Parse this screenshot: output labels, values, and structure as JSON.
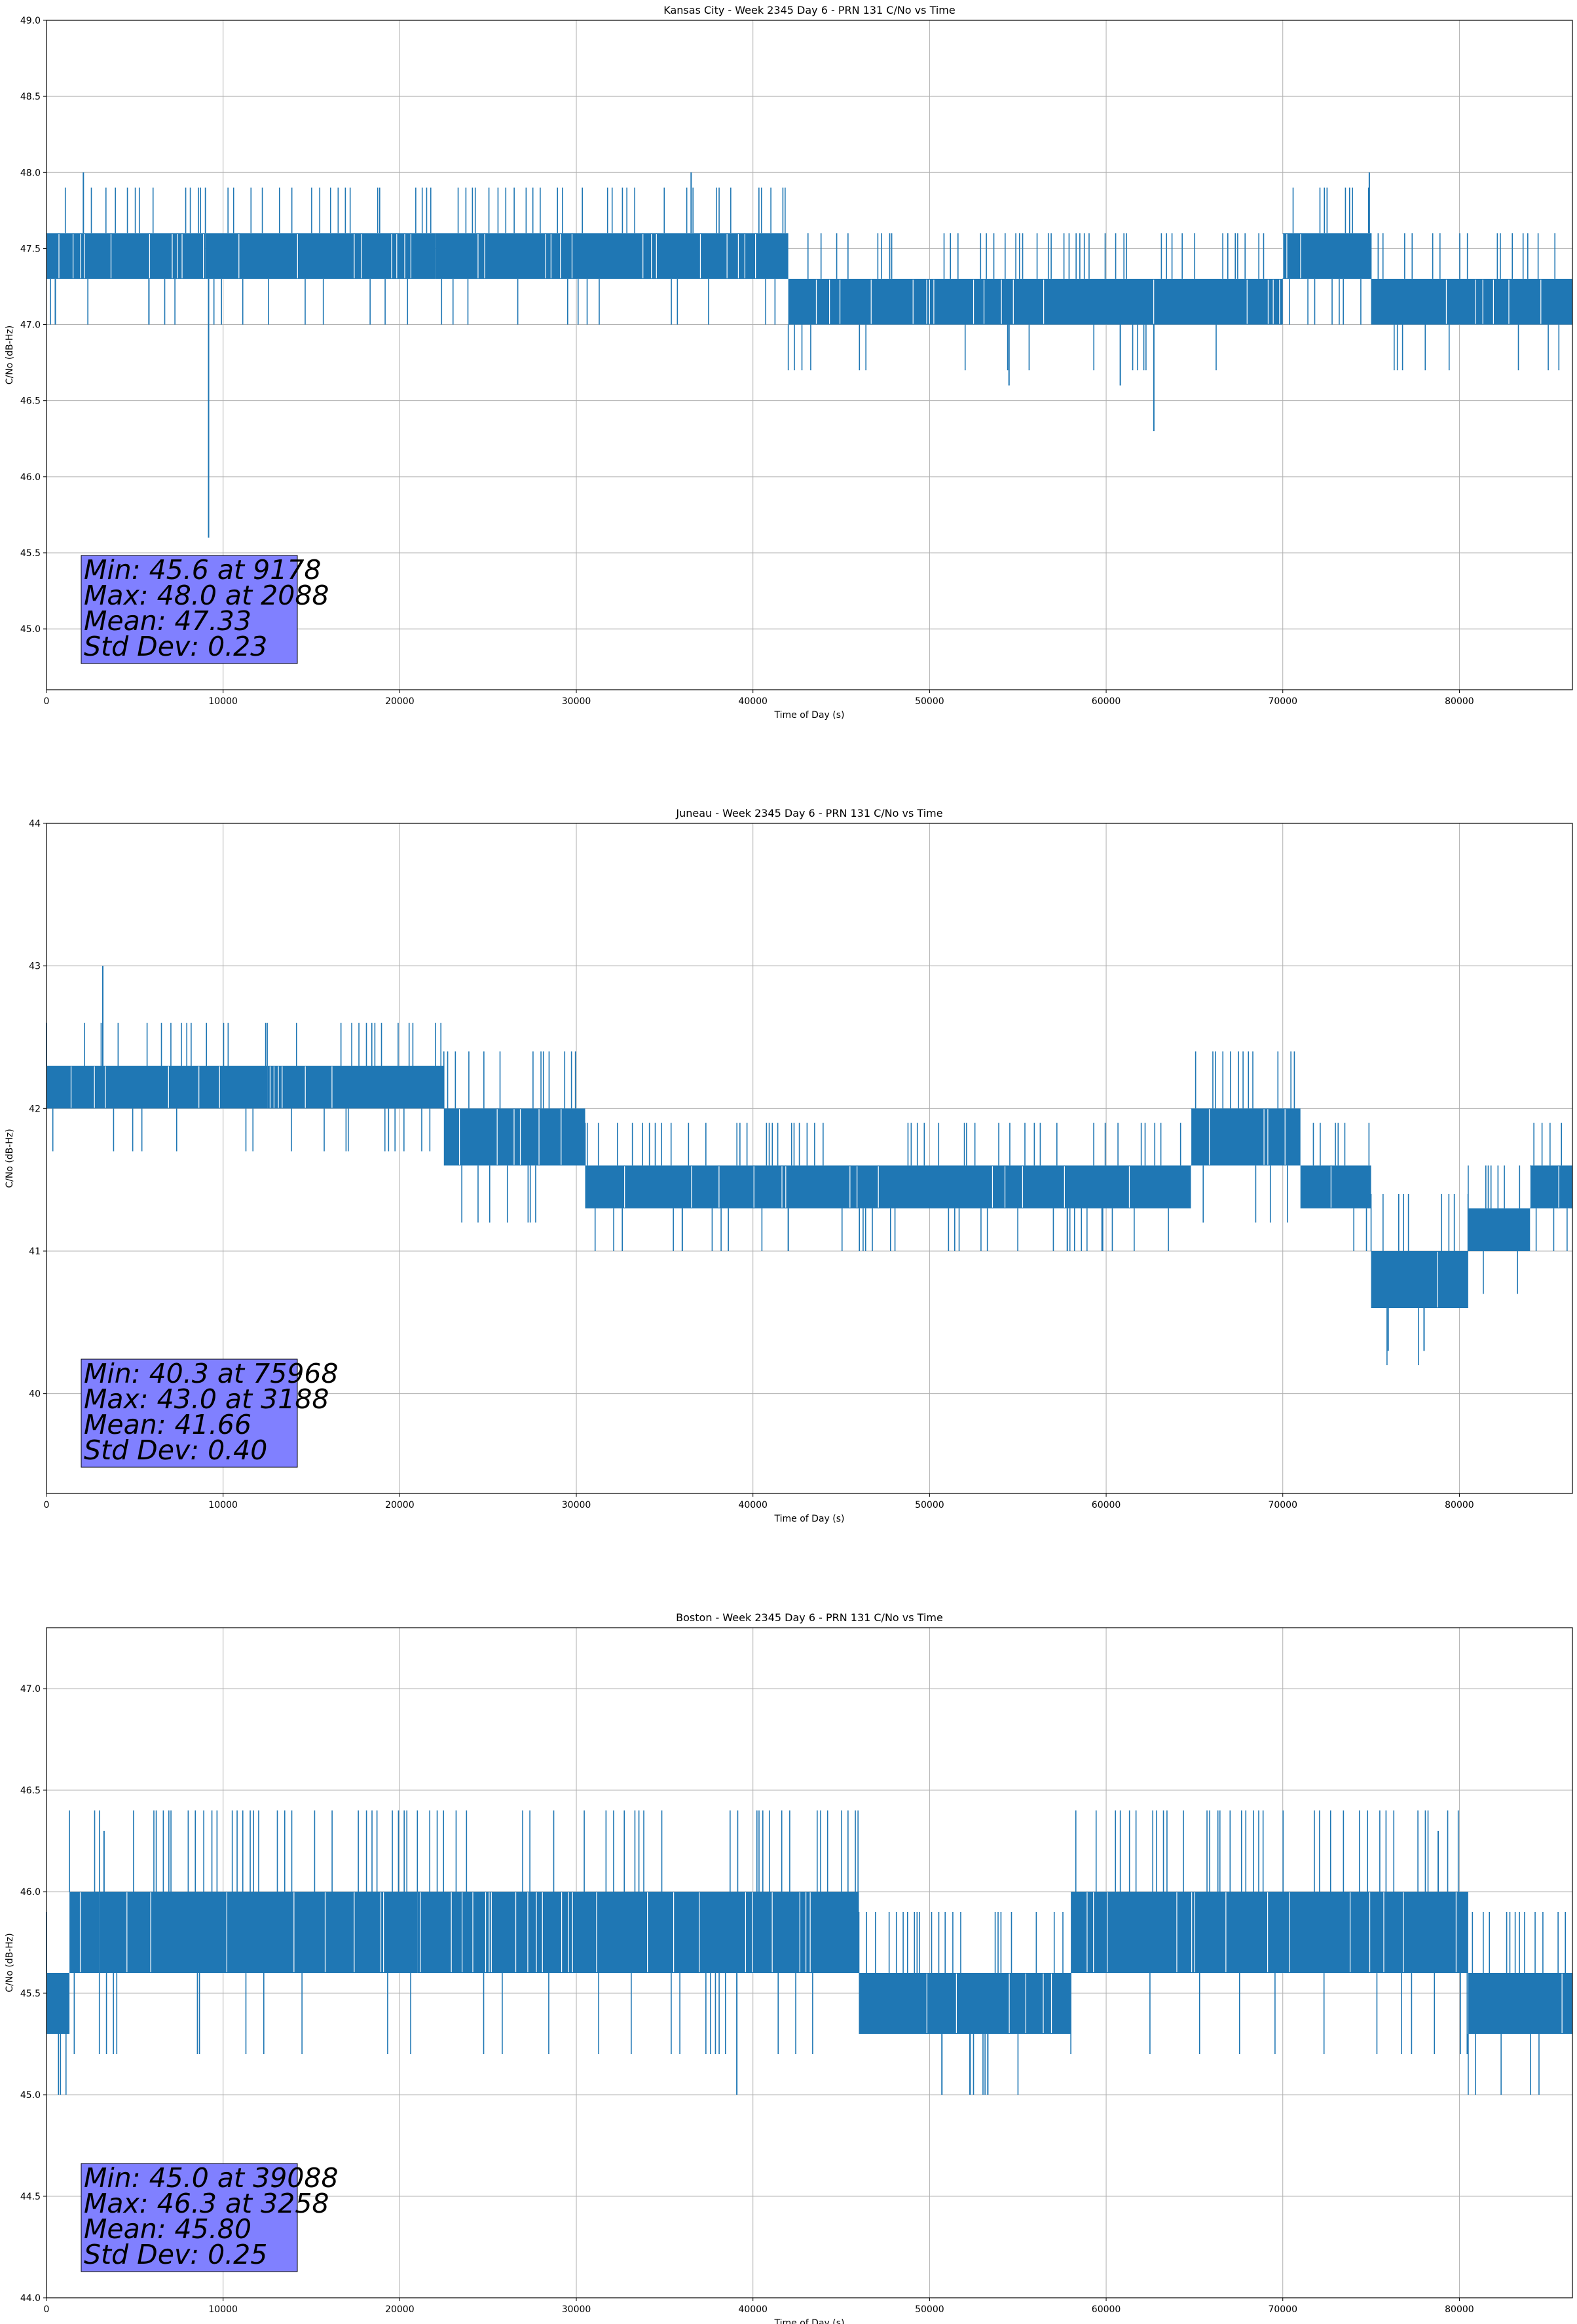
{
  "chart_data": [
    {
      "type": "line",
      "title": "Kansas City - Week 2345 Day 6 - PRN 131 C/No vs Time",
      "xlabel": "Time of Day (s)",
      "ylabel": "C/No (dB-Hz)",
      "xlim": [
        0,
        86400
      ],
      "ylim": [
        44.6,
        49.0
      ],
      "xticks": [
        0,
        10000,
        20000,
        30000,
        40000,
        50000,
        60000,
        70000,
        80000
      ],
      "xtick_labels": [
        "0",
        "10000",
        "20000",
        "30000",
        "40000",
        "50000",
        "60000",
        "70000",
        "80000"
      ],
      "yticks": [
        45.0,
        45.5,
        46.0,
        46.5,
        47.0,
        47.5,
        48.0,
        48.5,
        49.0
      ],
      "ytick_labels": [
        "45.0",
        "45.5",
        "46.0",
        "46.5",
        "47.0",
        "47.5",
        "48.0",
        "48.5",
        "49.0"
      ],
      "grid": true,
      "line_color": "#1f77b4",
      "series": [
        {
          "name": "C/No",
          "segments": [
            {
              "x": [
                0,
                9000
              ],
              "low": 47.3,
              "high": 47.6
            },
            {
              "x": [
                9000,
                22000
              ],
              "low": 47.3,
              "high": 47.6
            },
            {
              "x": [
                22000,
                42000
              ],
              "low": 47.3,
              "high": 47.6
            },
            {
              "x": [
                42000,
                70000
              ],
              "low": 47.0,
              "high": 47.3
            },
            {
              "x": [
                70000,
                75000
              ],
              "low": 47.3,
              "high": 47.6
            },
            {
              "x": [
                75000,
                86400
              ],
              "low": 47.0,
              "high": 47.3
            }
          ],
          "spikes": [
            {
              "x": 9178,
              "y": 45.6
            },
            {
              "x": 2088,
              "y": 48.0
            },
            {
              "x": 36500,
              "y": 48.0
            },
            {
              "x": 74900,
              "y": 48.0
            },
            {
              "x": 62700,
              "y": 46.3
            },
            {
              "x": 500,
              "y": 47.0
            },
            {
              "x": 5800,
              "y": 47.0
            },
            {
              "x": 54500,
              "y": 46.6
            },
            {
              "x": 60800,
              "y": 46.6
            }
          ]
        }
      ],
      "stats": [
        "Min: 45.6 at 9178",
        "Max: 48.0 at 2088",
        "Mean: 47.33",
        "Std Dev: 0.23"
      ]
    },
    {
      "type": "line",
      "title": "Juneau - Week 2345 Day 6 - PRN 131 C/No vs Time",
      "xlabel": "Time of Day (s)",
      "ylabel": "C/No (dB-Hz)",
      "xlim": [
        0,
        86400
      ],
      "ylim": [
        39.3,
        44.0
      ],
      "xticks": [
        0,
        10000,
        20000,
        30000,
        40000,
        50000,
        60000,
        70000,
        80000
      ],
      "xtick_labels": [
        "0",
        "10000",
        "20000",
        "30000",
        "40000",
        "50000",
        "60000",
        "70000",
        "80000"
      ],
      "yticks": [
        40,
        41,
        42,
        43,
        44
      ],
      "ytick_labels": [
        "40",
        "41",
        "42",
        "43",
        "44"
      ],
      "grid": true,
      "line_color": "#1f77b4",
      "series": [
        {
          "name": "C/No",
          "segments": [
            {
              "x": [
                0,
                12500
              ],
              "low": 42.0,
              "high": 42.3
            },
            {
              "x": [
                12500,
                22500
              ],
              "low": 42.0,
              "high": 42.3
            },
            {
              "x": [
                22500,
                30500
              ],
              "low": 41.6,
              "high": 42.0
            },
            {
              "x": [
                30500,
                64800
              ],
              "low": 41.3,
              "high": 41.6
            },
            {
              "x": [
                64800,
                71000
              ],
              "low": 41.6,
              "high": 42.0
            },
            {
              "x": [
                71000,
                75000
              ],
              "low": 41.3,
              "high": 41.6
            },
            {
              "x": [
                75000,
                80500
              ],
              "low": 40.6,
              "high": 41.0
            },
            {
              "x": [
                80500,
                84000
              ],
              "low": 41.0,
              "high": 41.3
            },
            {
              "x": [
                84000,
                86400
              ],
              "low": 41.3,
              "high": 41.6
            }
          ],
          "spikes": [
            {
              "x": 75968,
              "y": 40.3
            },
            {
              "x": 3188,
              "y": 43.0
            },
            {
              "x": 36000,
              "y": 41.0
            },
            {
              "x": 42000,
              "y": 41.0
            },
            {
              "x": 57800,
              "y": 41.0
            },
            {
              "x": 59800,
              "y": 41.0
            },
            {
              "x": 78000,
              "y": 40.3
            }
          ]
        }
      ],
      "stats": [
        "Min: 40.3 at 75968",
        "Max: 43.0 at 3188",
        "Mean: 41.66",
        "Std Dev: 0.40"
      ]
    },
    {
      "type": "line",
      "title": "Boston - Week 2345 Day 6 - PRN 131 C/No vs Time",
      "xlabel": "Time of Day (s)",
      "ylabel": "C/No (dB-Hz)",
      "xlim": [
        0,
        86400
      ],
      "ylim": [
        44.0,
        47.3
      ],
      "xticks": [
        0,
        10000,
        20000,
        30000,
        40000,
        50000,
        60000,
        70000,
        80000
      ],
      "xtick_labels": [
        "0",
        "10000",
        "20000",
        "30000",
        "40000",
        "50000",
        "60000",
        "70000",
        "80000"
      ],
      "yticks": [
        44.0,
        44.5,
        45.0,
        45.5,
        46.0,
        46.5,
        47.0
      ],
      "ytick_labels": [
        "44.0",
        "44.5",
        "45.0",
        "45.5",
        "46.0",
        "46.5",
        "47.0"
      ],
      "grid": true,
      "line_color": "#1f77b4",
      "series": [
        {
          "name": "C/No",
          "segments": [
            {
              "x": [
                0,
                1300
              ],
              "low": 45.3,
              "high": 45.6
            },
            {
              "x": [
                1300,
                3000
              ],
              "low": 45.6,
              "high": 46.0
            },
            {
              "x": [
                3000,
                21000
              ],
              "low": 45.6,
              "high": 46.0
            },
            {
              "x": [
                21000,
                43000
              ],
              "low": 45.6,
              "high": 46.0
            },
            {
              "x": [
                43000,
                46000
              ],
              "low": 45.6,
              "high": 46.0
            },
            {
              "x": [
                46000,
                58000
              ],
              "low": 45.3,
              "high": 45.6
            },
            {
              "x": [
                58000,
                80500
              ],
              "low": 45.6,
              "high": 46.0
            },
            {
              "x": [
                80500,
                86400
              ],
              "low": 45.3,
              "high": 45.6
            }
          ],
          "spikes": [
            {
              "x": 39088,
              "y": 45.0
            },
            {
              "x": 3258,
              "y": 46.3
            },
            {
              "x": 50700,
              "y": 45.0
            },
            {
              "x": 52300,
              "y": 45.0
            },
            {
              "x": 53300,
              "y": 45.0
            },
            {
              "x": 78800,
              "y": 46.3
            }
          ]
        }
      ],
      "stats": [
        "Min: 45.0 at 39088",
        "Max: 46.3 at 3258",
        "Mean: 45.80",
        "Std Dev: 0.25"
      ]
    }
  ]
}
